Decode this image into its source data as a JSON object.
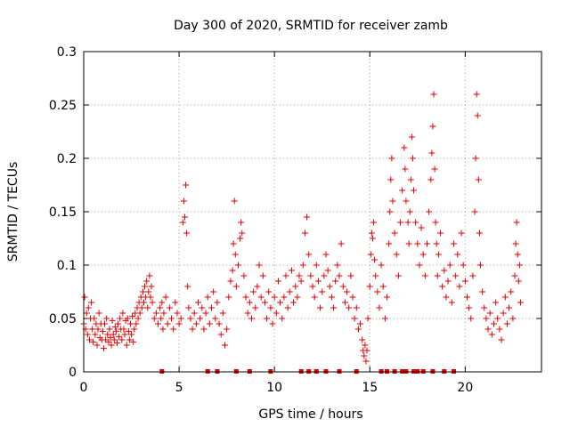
{
  "chart_data": {
    "type": "scatter",
    "title": "Day 300 of 2020, SRMTID for receiver zamb",
    "xlabel": "GPS time / hours",
    "ylabel": "SRMTID / TECUs",
    "xlim": [
      0,
      24
    ],
    "ylim": [
      0,
      0.3
    ],
    "xticks": [
      0,
      5,
      10,
      15,
      20
    ],
    "xtick_labels": [
      "0",
      "5",
      "10",
      "15",
      "20"
    ],
    "yticks": [
      0,
      0.05,
      0.1,
      0.15,
      0.2,
      0.25,
      0.3
    ],
    "ytick_labels": [
      "0",
      "0.05",
      "0.1",
      "0.15",
      "0.2",
      "0.25",
      "0.3"
    ],
    "grid": true,
    "marker": "+",
    "color": "#e00000",
    "series": [
      {
        "name": "SRMTID",
        "points": [
          [
            0.0,
            0.045
          ],
          [
            0.05,
            0.07
          ],
          [
            0.1,
            0.04
          ],
          [
            0.15,
            0.055
          ],
          [
            0.2,
            0.035
          ],
          [
            0.25,
            0.06
          ],
          [
            0.3,
            0.03
          ],
          [
            0.35,
            0.05
          ],
          [
            0.4,
            0.065
          ],
          [
            0.45,
            0.04
          ],
          [
            0.5,
            0.028
          ],
          [
            0.55,
            0.05
          ],
          [
            0.6,
            0.035
          ],
          [
            0.65,
            0.045
          ],
          [
            0.7,
            0.025
          ],
          [
            0.75,
            0.04
          ],
          [
            0.8,
            0.055
          ],
          [
            0.85,
            0.032
          ],
          [
            0.9,
            0.045
          ],
          [
            0.95,
            0.03
          ],
          [
            1.0,
            0.038
          ],
          [
            1.05,
            0.022
          ],
          [
            1.1,
            0.045
          ],
          [
            1.15,
            0.03
          ],
          [
            1.2,
            0.05
          ],
          [
            1.25,
            0.035
          ],
          [
            1.3,
            0.028
          ],
          [
            1.35,
            0.04
          ],
          [
            1.4,
            0.032
          ],
          [
            1.45,
            0.025
          ],
          [
            1.5,
            0.048
          ],
          [
            1.55,
            0.035
          ],
          [
            1.6,
            0.03
          ],
          [
            1.65,
            0.042
          ],
          [
            1.7,
            0.038
          ],
          [
            1.75,
            0.027
          ],
          [
            1.8,
            0.045
          ],
          [
            1.85,
            0.033
          ],
          [
            1.9,
            0.05
          ],
          [
            1.95,
            0.04
          ],
          [
            2.0,
            0.03
          ],
          [
            2.05,
            0.055
          ],
          [
            2.1,
            0.04
          ],
          [
            2.15,
            0.035
          ],
          [
            2.2,
            0.048
          ],
          [
            2.25,
            0.025
          ],
          [
            2.3,
            0.05
          ],
          [
            2.35,
            0.038
          ],
          [
            2.4,
            0.03
          ],
          [
            2.45,
            0.045
          ],
          [
            2.5,
            0.035
          ],
          [
            2.55,
            0.052
          ],
          [
            2.6,
            0.028
          ],
          [
            2.65,
            0.04
          ],
          [
            2.7,
            0.055
          ],
          [
            2.75,
            0.045
          ],
          [
            2.8,
            0.06
          ],
          [
            2.85,
            0.05
          ],
          [
            2.9,
            0.065
          ],
          [
            2.95,
            0.055
          ],
          [
            3.0,
            0.07
          ],
          [
            3.05,
            0.06
          ],
          [
            3.1,
            0.075
          ],
          [
            3.15,
            0.065
          ],
          [
            3.2,
            0.08
          ],
          [
            3.25,
            0.07
          ],
          [
            3.3,
            0.085
          ],
          [
            3.35,
            0.06
          ],
          [
            3.4,
            0.075
          ],
          [
            3.45,
            0.09
          ],
          [
            3.5,
            0.07
          ],
          [
            3.55,
            0.08
          ],
          [
            3.6,
            0.065
          ],
          [
            3.7,
            0.05
          ],
          [
            3.8,
            0.055
          ],
          [
            3.9,
            0.045
          ],
          [
            4.0,
            0.06
          ],
          [
            4.05,
            0.05
          ],
          [
            4.1,
            0.065
          ],
          [
            4.15,
            0.04
          ],
          [
            4.2,
            0.055
          ],
          [
            4.3,
            0.07
          ],
          [
            4.4,
            0.045
          ],
          [
            4.5,
            0.06
          ],
          [
            4.6,
            0.05
          ],
          [
            4.7,
            0.04
          ],
          [
            4.8,
            0.065
          ],
          [
            4.9,
            0.055
          ],
          [
            5.0,
            0.045
          ],
          [
            5.1,
            0.05
          ],
          [
            5.2,
            0.14
          ],
          [
            5.25,
            0.16
          ],
          [
            5.3,
            0.145
          ],
          [
            5.35,
            0.175
          ],
          [
            5.4,
            0.13
          ],
          [
            5.45,
            0.08
          ],
          [
            5.5,
            0.06
          ],
          [
            5.6,
            0.05
          ],
          [
            5.7,
            0.04
          ],
          [
            5.8,
            0.055
          ],
          [
            5.9,
            0.045
          ],
          [
            6.0,
            0.065
          ],
          [
            6.1,
            0.05
          ],
          [
            6.2,
            0.06
          ],
          [
            6.3,
            0.04
          ],
          [
            6.4,
            0.055
          ],
          [
            6.5,
            0.07
          ],
          [
            6.6,
            0.045
          ],
          [
            6.7,
            0.06
          ],
          [
            6.8,
            0.075
          ],
          [
            6.9,
            0.05
          ],
          [
            7.0,
            0.065
          ],
          [
            7.1,
            0.045
          ],
          [
            7.2,
            0.035
          ],
          [
            7.3,
            0.055
          ],
          [
            7.4,
            0.025
          ],
          [
            7.5,
            0.04
          ],
          [
            7.6,
            0.07
          ],
          [
            7.7,
            0.085
          ],
          [
            7.8,
            0.095
          ],
          [
            7.85,
            0.12
          ],
          [
            7.9,
            0.16
          ],
          [
            7.95,
            0.11
          ],
          [
            8.0,
            0.08
          ],
          [
            8.1,
            0.1
          ],
          [
            8.2,
            0.125
          ],
          [
            8.25,
            0.14
          ],
          [
            8.3,
            0.13
          ],
          [
            8.4,
            0.09
          ],
          [
            8.5,
            0.07
          ],
          [
            8.6,
            0.055
          ],
          [
            8.7,
            0.065
          ],
          [
            8.8,
            0.05
          ],
          [
            8.9,
            0.075
          ],
          [
            9.0,
            0.06
          ],
          [
            9.1,
            0.08
          ],
          [
            9.2,
            0.1
          ],
          [
            9.3,
            0.07
          ],
          [
            9.4,
            0.09
          ],
          [
            9.5,
            0.065
          ],
          [
            9.6,
            0.05
          ],
          [
            9.7,
            0.075
          ],
          [
            9.8,
            0.06
          ],
          [
            9.9,
            0.045
          ],
          [
            10.0,
            0.07
          ],
          [
            10.1,
            0.055
          ],
          [
            10.2,
            0.085
          ],
          [
            10.3,
            0.065
          ],
          [
            10.4,
            0.05
          ],
          [
            10.5,
            0.07
          ],
          [
            10.6,
            0.09
          ],
          [
            10.7,
            0.06
          ],
          [
            10.8,
            0.075
          ],
          [
            10.9,
            0.095
          ],
          [
            11.0,
            0.065
          ],
          [
            11.1,
            0.08
          ],
          [
            11.2,
            0.07
          ],
          [
            11.3,
            0.09
          ],
          [
            11.4,
            0.085
          ],
          [
            11.5,
            0.1
          ],
          [
            11.6,
            0.13
          ],
          [
            11.7,
            0.145
          ],
          [
            11.8,
            0.11
          ],
          [
            11.9,
            0.09
          ],
          [
            12.0,
            0.08
          ],
          [
            12.1,
            0.07
          ],
          [
            12.2,
            0.1
          ],
          [
            12.3,
            0.085
          ],
          [
            12.4,
            0.06
          ],
          [
            12.5,
            0.075
          ],
          [
            12.6,
            0.09
          ],
          [
            12.7,
            0.11
          ],
          [
            12.8,
            0.095
          ],
          [
            12.9,
            0.08
          ],
          [
            13.0,
            0.07
          ],
          [
            13.1,
            0.06
          ],
          [
            13.2,
            0.085
          ],
          [
            13.3,
            0.1
          ],
          [
            13.4,
            0.09
          ],
          [
            13.5,
            0.12
          ],
          [
            13.6,
            0.08
          ],
          [
            13.7,
            0.065
          ],
          [
            13.8,
            0.075
          ],
          [
            13.9,
            0.06
          ],
          [
            14.0,
            0.09
          ],
          [
            14.1,
            0.07
          ],
          [
            14.2,
            0.05
          ],
          [
            14.3,
            0.06
          ],
          [
            14.4,
            0.04
          ],
          [
            14.5,
            0.045
          ],
          [
            14.6,
            0.03
          ],
          [
            14.65,
            0.02
          ],
          [
            14.7,
            0.015
          ],
          [
            14.75,
            0.025
          ],
          [
            14.8,
            0.01
          ],
          [
            14.85,
            0.02
          ],
          [
            14.9,
            0.05
          ],
          [
            15.0,
            0.08
          ],
          [
            15.05,
            0.11
          ],
          [
            15.1,
            0.13
          ],
          [
            15.15,
            0.125
          ],
          [
            15.2,
            0.14
          ],
          [
            15.25,
            0.105
          ],
          [
            15.3,
            0.09
          ],
          [
            15.4,
            0.075
          ],
          [
            15.5,
            0.06
          ],
          [
            15.6,
            0.1
          ],
          [
            15.7,
            0.08
          ],
          [
            15.8,
            0.05
          ],
          [
            15.9,
            0.07
          ],
          [
            16.0,
            0.12
          ],
          [
            16.05,
            0.15
          ],
          [
            16.1,
            0.18
          ],
          [
            16.15,
            0.2
          ],
          [
            16.2,
            0.16
          ],
          [
            16.3,
            0.13
          ],
          [
            16.4,
            0.11
          ],
          [
            16.5,
            0.09
          ],
          [
            16.6,
            0.14
          ],
          [
            16.7,
            0.17
          ],
          [
            16.8,
            0.21
          ],
          [
            16.85,
            0.19
          ],
          [
            16.9,
            0.16
          ],
          [
            17.0,
            0.14
          ],
          [
            17.05,
            0.12
          ],
          [
            17.1,
            0.15
          ],
          [
            17.15,
            0.18
          ],
          [
            17.2,
            0.22
          ],
          [
            17.25,
            0.2
          ],
          [
            17.3,
            0.17
          ],
          [
            17.4,
            0.14
          ],
          [
            17.5,
            0.12
          ],
          [
            17.6,
            0.1
          ],
          [
            17.7,
            0.135
          ],
          [
            17.8,
            0.11
          ],
          [
            17.9,
            0.09
          ],
          [
            18.0,
            0.12
          ],
          [
            18.1,
            0.15
          ],
          [
            18.2,
            0.18
          ],
          [
            18.25,
            0.205
          ],
          [
            18.3,
            0.23
          ],
          [
            18.35,
            0.26
          ],
          [
            18.4,
            0.19
          ],
          [
            18.45,
            0.14
          ],
          [
            18.5,
            0.12
          ],
          [
            18.55,
            0.09
          ],
          [
            18.6,
            0.11
          ],
          [
            18.7,
            0.13
          ],
          [
            18.8,
            0.08
          ],
          [
            18.9,
            0.095
          ],
          [
            19.0,
            0.07
          ],
          [
            19.1,
            0.085
          ],
          [
            19.2,
            0.1
          ],
          [
            19.3,
            0.065
          ],
          [
            19.4,
            0.12
          ],
          [
            19.5,
            0.09
          ],
          [
            19.6,
            0.11
          ],
          [
            19.7,
            0.08
          ],
          [
            19.8,
            0.13
          ],
          [
            19.9,
            0.1
          ],
          [
            20.0,
            0.085
          ],
          [
            20.1,
            0.07
          ],
          [
            20.2,
            0.06
          ],
          [
            20.3,
            0.05
          ],
          [
            20.4,
            0.09
          ],
          [
            20.5,
            0.15
          ],
          [
            20.55,
            0.2
          ],
          [
            20.6,
            0.26
          ],
          [
            20.65,
            0.24
          ],
          [
            20.7,
            0.18
          ],
          [
            20.75,
            0.13
          ],
          [
            20.8,
            0.1
          ],
          [
            20.9,
            0.075
          ],
          [
            21.0,
            0.06
          ],
          [
            21.1,
            0.05
          ],
          [
            21.2,
            0.04
          ],
          [
            21.3,
            0.055
          ],
          [
            21.4,
            0.035
          ],
          [
            21.5,
            0.045
          ],
          [
            21.6,
            0.065
          ],
          [
            21.7,
            0.05
          ],
          [
            21.8,
            0.04
          ],
          [
            21.9,
            0.03
          ],
          [
            22.0,
            0.055
          ],
          [
            22.1,
            0.07
          ],
          [
            22.2,
            0.045
          ],
          [
            22.3,
            0.06
          ],
          [
            22.4,
            0.075
          ],
          [
            22.5,
            0.05
          ],
          [
            22.6,
            0.09
          ],
          [
            22.65,
            0.12
          ],
          [
            22.7,
            0.14
          ],
          [
            22.75,
            0.11
          ],
          [
            22.8,
            0.085
          ],
          [
            22.85,
            0.1
          ],
          [
            22.9,
            0.065
          ]
        ],
        "zero_points": [
          4.1,
          6.5,
          7.0,
          8.0,
          8.7,
          9.8,
          11.4,
          11.8,
          12.2,
          12.7,
          13.4,
          14.3,
          15.6,
          15.9,
          16.3,
          16.7,
          16.9,
          17.3,
          17.5,
          17.8,
          18.3,
          18.9,
          19.4
        ]
      }
    ]
  }
}
